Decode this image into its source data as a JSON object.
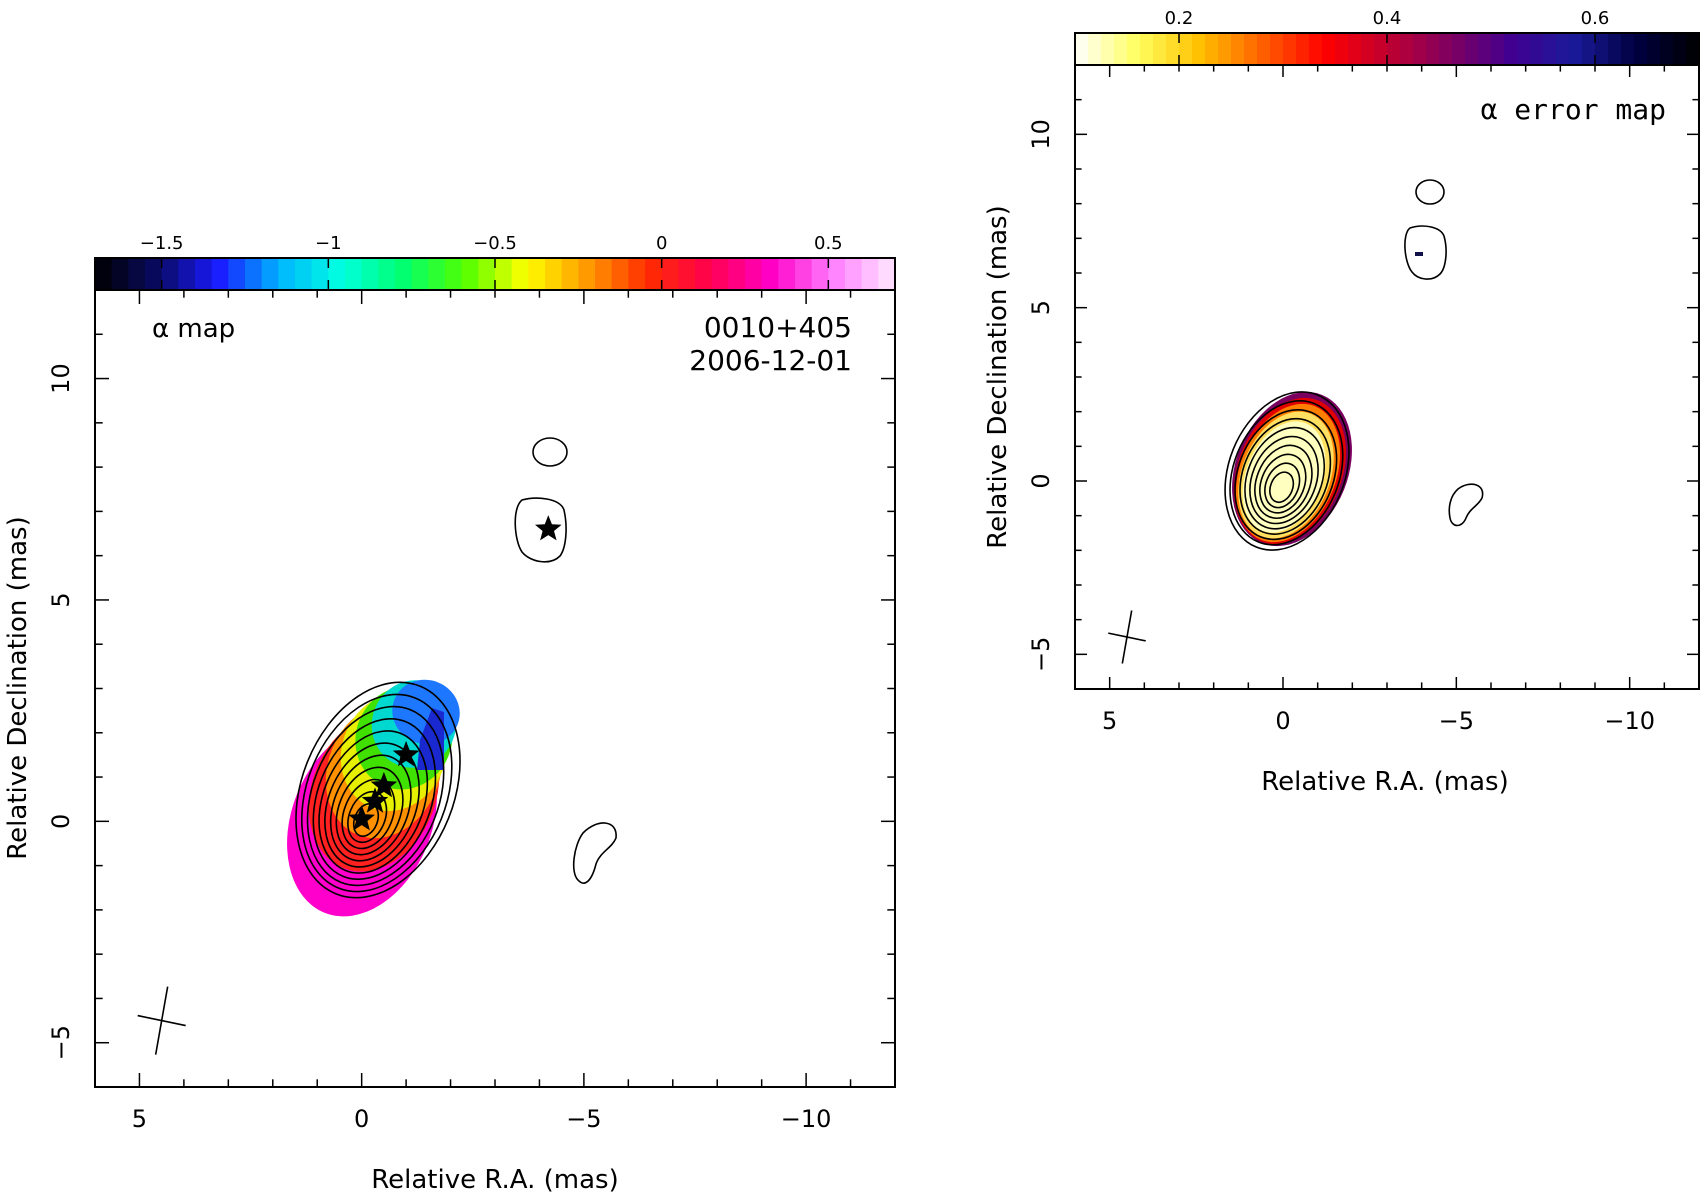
{
  "chart_data": [
    {
      "type": "heatmap",
      "panel": "left",
      "map_label": "α map",
      "source": "0010+405",
      "date": "2006-12-01",
      "xlabel": "Relative R.A. (mas)",
      "ylabel": "Relative Declination (mas)",
      "xlim": [
        6,
        -12
      ],
      "ylim": [
        -6,
        12
      ],
      "xticks": [
        5,
        0,
        -5,
        -10
      ],
      "yticks": [
        10,
        5,
        0,
        -5
      ],
      "colorbar": {
        "range": [
          -1.7,
          0.7
        ],
        "ticks": [
          -1.5,
          -1,
          -0.5,
          0,
          0.5
        ],
        "tick_labels": [
          "−1.5",
          "−1",
          "−0.5",
          "0",
          "0.5"
        ],
        "colormap": [
          "#000000",
          "#0a0a60",
          "#1a1aff",
          "#00b4ff",
          "#00ffe0",
          "#00ff70",
          "#50ff00",
          "#ffff00",
          "#ff9a00",
          "#ff2a00",
          "#ff0050",
          "#ff00c8",
          "#ff80ff",
          "#ffe8ff"
        ]
      },
      "markers": [
        {
          "ra": 0.0,
          "dec": 0.05
        },
        {
          "ra": -0.3,
          "dec": 0.45
        },
        {
          "ra": -0.5,
          "dec": 0.8
        },
        {
          "ra": -1.0,
          "dec": 1.5
        },
        {
          "ra": -4.2,
          "dec": 6.6
        }
      ],
      "beam": {
        "ra": 4.5,
        "dec": -4.5
      }
    },
    {
      "type": "heatmap",
      "panel": "right",
      "map_label": "α error map",
      "xlabel": "Relative R.A. (mas)",
      "ylabel": "Relative Declination (mas)",
      "xlim": [
        6,
        -12
      ],
      "ylim": [
        -6,
        12
      ],
      "xticks": [
        5,
        0,
        -5,
        -10
      ],
      "yticks": [
        10,
        5,
        0,
        -5
      ],
      "colorbar": {
        "range": [
          0.1,
          0.7
        ],
        "ticks": [
          0.2,
          0.4,
          0.6
        ],
        "tick_labels": [
          "0.2",
          "0.4",
          "0.6"
        ],
        "colormap": [
          "#ffffff",
          "#ffff60",
          "#ffc000",
          "#ff6000",
          "#ff0000",
          "#c00030",
          "#800060",
          "#400090",
          "#1a1a9a",
          "#000040",
          "#000000"
        ]
      },
      "beam": {
        "ra": 4.5,
        "dec": -4.5
      }
    }
  ]
}
